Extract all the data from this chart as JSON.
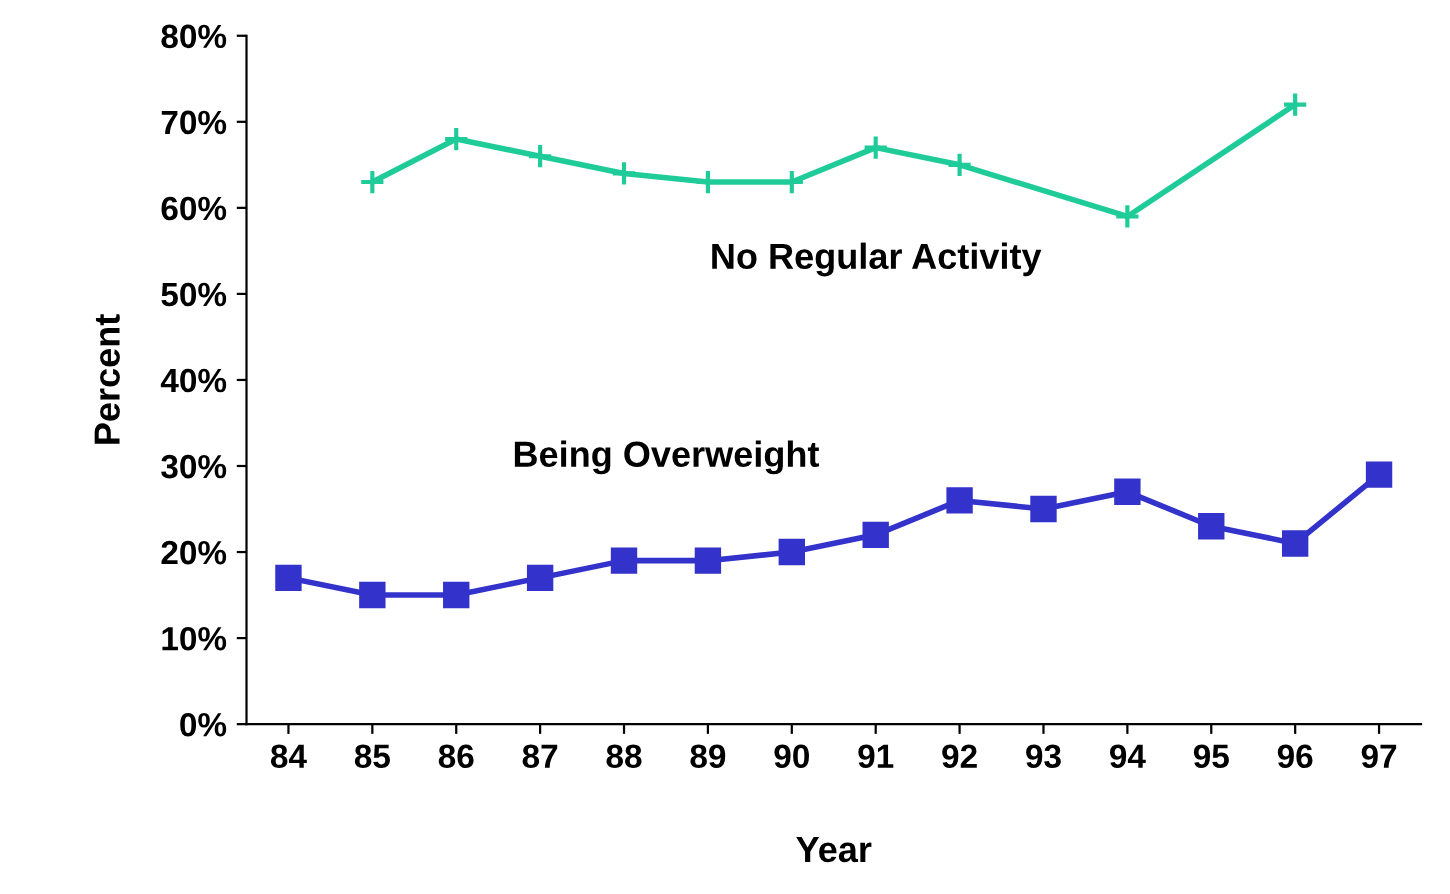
{
  "chart_data": {
    "type": "line",
    "xlabel": "Year",
    "ylabel": "Percent",
    "categories": [
      "84",
      "85",
      "86",
      "87",
      "88",
      "89",
      "90",
      "91",
      "92",
      "93",
      "94",
      "95",
      "96",
      "97"
    ],
    "series": [
      {
        "name": "No Regular Activity",
        "color": "#1fcc99",
        "marker": "cross",
        "values": [
          null,
          63,
          68,
          66,
          64,
          63,
          63,
          67,
          65,
          null,
          59,
          null,
          72,
          null
        ]
      },
      {
        "name": "Being Overweight",
        "color": "#3333cc",
        "marker": "square",
        "values": [
          17,
          15,
          15,
          17,
          19,
          19,
          20,
          22,
          26,
          25,
          27,
          23,
          21,
          29
        ]
      }
    ],
    "ylim": [
      0,
      80
    ],
    "yticks": [
      {
        "value": 0,
        "label": "0%"
      },
      {
        "value": 10,
        "label": "10%"
      },
      {
        "value": 20,
        "label": "20%"
      },
      {
        "value": 30,
        "label": "30%"
      },
      {
        "value": 40,
        "label": "40%"
      },
      {
        "value": 50,
        "label": "50%"
      },
      {
        "value": 60,
        "label": "60%"
      },
      {
        "value": 70,
        "label": "70%"
      },
      {
        "value": 80,
        "label": "80%"
      }
    ],
    "grid": false,
    "legend": false
  }
}
